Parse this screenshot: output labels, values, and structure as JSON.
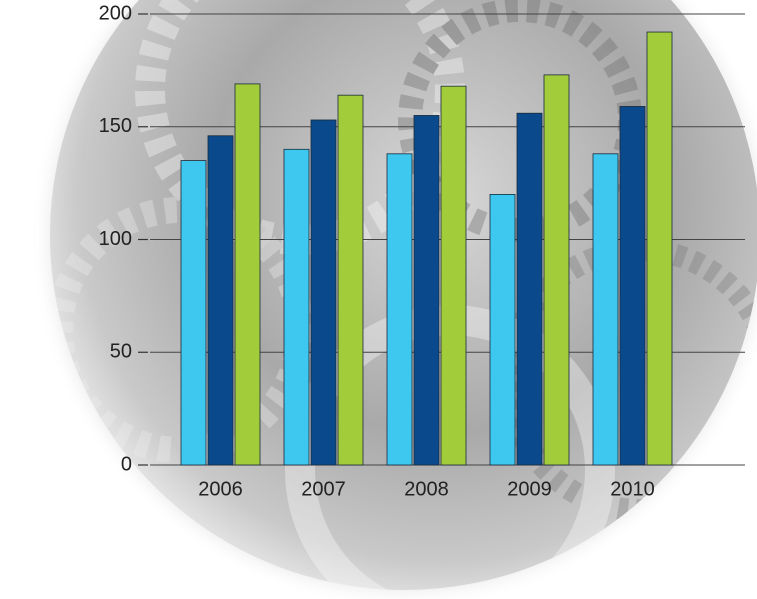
{
  "chart_data": {
    "type": "bar",
    "categories": [
      "2006",
      "2007",
      "2008",
      "2009",
      "2010"
    ],
    "series": [
      {
        "color": "#3ec8f0",
        "values": [
          135,
          140,
          138,
          120,
          138
        ]
      },
      {
        "color": "#0a4a8c",
        "values": [
          146,
          153,
          155,
          156,
          159
        ]
      },
      {
        "color": "#a3cc3a",
        "values": [
          169,
          164,
          168,
          173,
          192
        ]
      }
    ],
    "ylim": [
      0,
      200
    ],
    "yticks": [
      0,
      50,
      100,
      150,
      200
    ],
    "grid": true
  }
}
